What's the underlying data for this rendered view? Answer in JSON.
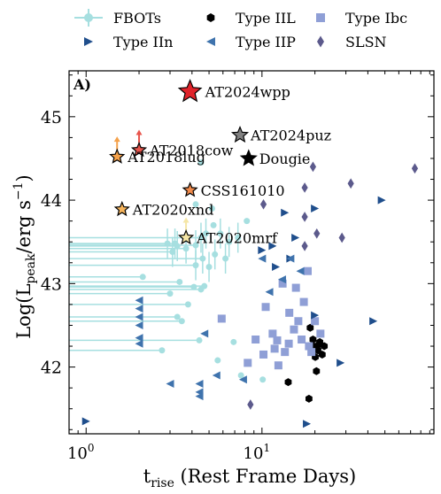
{
  "chart_data": {
    "type": "scatter",
    "panel_label": "A)",
    "xlabel": "t_rise (Rest Frame Days)",
    "xlabel_main": "t",
    "xlabel_sub": "rise",
    "xlabel_rest": " (Rest Frame Days)",
    "ylabel": "Log(L_peak/erg s^-1)",
    "ylabel_pre": "Log(L",
    "ylabel_sub": "peak",
    "ylabel_mid": "/erg s",
    "ylabel_sup": "−1",
    "ylabel_post": ")",
    "x_scale": "log",
    "xlim": [
      0.8,
      95
    ],
    "ylim": [
      41.2,
      45.55
    ],
    "x_ticks": [
      {
        "v": 1,
        "base": "10",
        "exp": "0"
      },
      {
        "v": 10,
        "base": "10",
        "exp": "1"
      }
    ],
    "y_ticks": [
      {
        "v": 42,
        "label": "42"
      },
      {
        "v": 43,
        "label": "43"
      },
      {
        "v": 44,
        "label": "44"
      },
      {
        "v": 45,
        "label": "45"
      }
    ],
    "legend_position": "top, outside plot",
    "legend": [
      {
        "key": "fbot",
        "label": "FBOTs"
      },
      {
        "key": "iil",
        "label": "Type IIL"
      },
      {
        "key": "ibc",
        "label": "Type Ibc"
      },
      {
        "key": "iin",
        "label": "Type IIn"
      },
      {
        "key": "iip",
        "label": "Type IIP"
      },
      {
        "key": "slsn",
        "label": "SLSN"
      }
    ],
    "series": [
      {
        "key": "fbot",
        "marker": "circle",
        "color": "#a6dfe0",
        "points": [
          [
            2.9,
            43.48
          ],
          [
            3.2,
            43.48
          ],
          [
            3.3,
            43.45
          ],
          [
            3.1,
            43.38
          ],
          [
            3.7,
            43.42
          ],
          [
            4.2,
            43.46
          ],
          [
            4.5,
            43.55
          ],
          [
            4.6,
            43.3
          ],
          [
            5.0,
            43.2
          ],
          [
            4.8,
            43.6
          ],
          [
            5.3,
            43.7
          ],
          [
            5.8,
            43.6
          ],
          [
            6.5,
            43.5
          ],
          [
            7.3,
            43.55
          ],
          [
            8.2,
            43.75
          ],
          [
            4.2,
            43.22
          ],
          [
            2.1,
            43.08
          ],
          [
            3.4,
            43.02
          ],
          [
            3.0,
            42.88
          ],
          [
            4.1,
            42.96
          ],
          [
            4.7,
            42.97
          ],
          [
            4.5,
            42.93
          ],
          [
            3.8,
            42.75
          ],
          [
            3.3,
            42.6
          ],
          [
            3.5,
            42.55
          ],
          [
            4.4,
            42.32
          ],
          [
            5.6,
            42.08
          ],
          [
            2.7,
            42.2
          ],
          [
            7.6,
            41.9
          ],
          [
            10.1,
            41.85
          ],
          [
            6.9,
            42.3
          ],
          [
            5.2,
            43.9
          ],
          [
            4.5,
            44.45
          ],
          [
            4.2,
            43.95
          ],
          [
            5.4,
            43.35
          ],
          [
            6.2,
            43.3
          ]
        ]
      },
      {
        "key": "iil",
        "marker": "hexagon",
        "color": "#000000",
        "points": [
          [
            18.8,
            42.47
          ],
          [
            19.5,
            42.33
          ],
          [
            20.1,
            42.12
          ],
          [
            20.8,
            42.2
          ],
          [
            21.3,
            42.3
          ],
          [
            19.7,
            42.25
          ],
          [
            22.0,
            42.15
          ],
          [
            21.1,
            42.27
          ],
          [
            22.6,
            42.25
          ],
          [
            20.4,
            41.95
          ],
          [
            14.1,
            41.82
          ],
          [
            18.5,
            41.62
          ]
        ]
      },
      {
        "key": "ibc",
        "marker": "square",
        "color": "#8f9fd6",
        "points": [
          [
            13.1,
            43.0
          ],
          [
            15.6,
            42.95
          ],
          [
            18.2,
            43.15
          ],
          [
            17.3,
            42.78
          ],
          [
            10.5,
            42.72
          ],
          [
            5.9,
            42.58
          ],
          [
            9.2,
            42.33
          ],
          [
            12.2,
            42.32
          ],
          [
            14.3,
            42.65
          ],
          [
            16.1,
            42.55
          ],
          [
            8.3,
            42.05
          ],
          [
            10.2,
            42.15
          ],
          [
            11.8,
            42.22
          ],
          [
            12.4,
            42.02
          ],
          [
            14.2,
            42.28
          ],
          [
            16.8,
            42.33
          ],
          [
            19.1,
            42.18
          ],
          [
            21.5,
            42.4
          ],
          [
            18.5,
            42.25
          ],
          [
            13.5,
            42.18
          ],
          [
            20.0,
            42.55
          ],
          [
            15.2,
            42.45
          ],
          [
            11.5,
            42.4
          ]
        ]
      },
      {
        "key": "iin",
        "marker": "triangle-right",
        "color": "#1f4e8c",
        "points": [
          [
            1.0,
            41.35
          ],
          [
            48,
            44.0
          ],
          [
            43,
            42.55
          ],
          [
            28,
            42.05
          ],
          [
            20,
            42.62
          ],
          [
            18,
            41.32
          ],
          [
            14.5,
            43.3
          ],
          [
            15.5,
            43.55
          ],
          [
            11.5,
            43.45
          ],
          [
            10.0,
            43.4
          ],
          [
            20,
            43.9
          ],
          [
            13.5,
            43.85
          ],
          [
            12.0,
            43.2
          ]
        ]
      },
      {
        "key": "iip",
        "marker": "triangle-left",
        "color": "#3f73ad",
        "points": [
          [
            2.0,
            42.8
          ],
          [
            2.0,
            42.7
          ],
          [
            2.0,
            42.6
          ],
          [
            2.0,
            42.5
          ],
          [
            2.0,
            42.35
          ],
          [
            2.0,
            42.28
          ],
          [
            3.0,
            41.8
          ],
          [
            4.4,
            41.8
          ],
          [
            4.4,
            41.7
          ],
          [
            4.4,
            41.65
          ],
          [
            5.5,
            41.9
          ],
          [
            4.7,
            42.4
          ],
          [
            7.8,
            41.85
          ],
          [
            14.5,
            43.3
          ],
          [
            16.5,
            43.15
          ],
          [
            13.0,
            43.05
          ],
          [
            11.0,
            42.9
          ],
          [
            10.0,
            43.3
          ]
        ]
      },
      {
        "key": "slsn",
        "marker": "diamond",
        "color": "#5c5a8c",
        "points": [
          [
            19.5,
            44.4
          ],
          [
            17.5,
            44.15
          ],
          [
            17.5,
            43.8
          ],
          [
            17.5,
            43.45
          ],
          [
            20.5,
            43.6
          ],
          [
            28.5,
            43.55
          ],
          [
            74,
            44.38
          ],
          [
            32,
            44.2
          ],
          [
            8.6,
            41.55
          ],
          [
            10.2,
            43.95
          ]
        ]
      }
    ],
    "named_events": [
      {
        "label": "AT2024wpp",
        "x": 3.9,
        "y": 45.3,
        "color": "#e0232a",
        "size": "large"
      },
      {
        "label": "AT2024puz",
        "x": 7.5,
        "y": 44.78,
        "color": "#808080",
        "size": "medium"
      },
      {
        "label": "Dougie",
        "x": 8.4,
        "y": 44.5,
        "color": "#000000",
        "size": "medium"
      },
      {
        "label": "AT2018cow",
        "x": 2.0,
        "y": 44.6,
        "color": "#e8554c",
        "size": "small",
        "arrow_up": true
      },
      {
        "label": "AT2018lug",
        "x": 1.5,
        "y": 44.52,
        "color": "#f5a24b",
        "size": "small",
        "arrow_up": true
      },
      {
        "label": "CSS161010",
        "x": 3.9,
        "y": 44.12,
        "color": "#f08a4b",
        "size": "small"
      },
      {
        "label": "AT2020xnd",
        "x": 1.6,
        "y": 43.89,
        "color": "#f6b45c",
        "size": "small"
      },
      {
        "label": "AT2020mrf",
        "x": 3.7,
        "y": 43.55,
        "color": "#f5e6a6",
        "size": "small",
        "arrow_up": true
      }
    ]
  }
}
